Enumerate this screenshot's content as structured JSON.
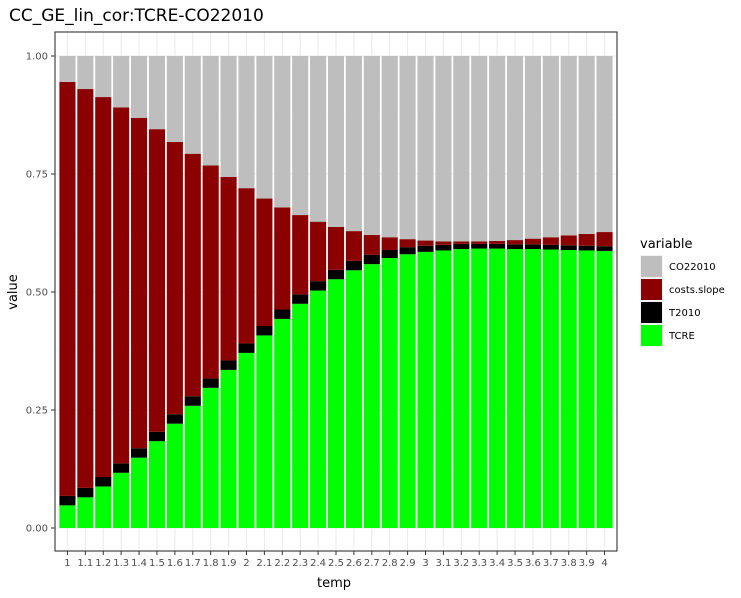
{
  "chart_data": {
    "type": "bar",
    "stacked": true,
    "title": "CC_GE_lin_cor:TCRE-CO22010",
    "xlabel": "temp",
    "ylabel": "value",
    "ylim": [
      0,
      1
    ],
    "yticks": [
      "0.00",
      "0.25",
      "0.50",
      "0.75",
      "1.00"
    ],
    "grid": true,
    "legend_placement": "right",
    "legend_title": "variable",
    "categories": [
      "1",
      "1.1",
      "1.2",
      "1.3",
      "1.4",
      "1.5",
      "1.6",
      "1.7",
      "1.8",
      "1.9",
      "2",
      "2.1",
      "2.2",
      "2.3",
      "2.4",
      "2.5",
      "2.6",
      "2.7",
      "2.8",
      "2.9",
      "3",
      "3.1",
      "3.2",
      "3.3",
      "3.4",
      "3.5",
      "3.6",
      "3.7",
      "3.8",
      "3.9",
      "4"
    ],
    "series": [
      {
        "name": "CO22010",
        "color": "#bebebe",
        "values": [
          0.055,
          0.07,
          0.087,
          0.109,
          0.131,
          0.155,
          0.182,
          0.207,
          0.232,
          0.256,
          0.28,
          0.302,
          0.321,
          0.337,
          0.351,
          0.362,
          0.371,
          0.379,
          0.384,
          0.388,
          0.391,
          0.393,
          0.393,
          0.393,
          0.392,
          0.39,
          0.387,
          0.384,
          0.38,
          0.377,
          0.373
        ]
      },
      {
        "name": "costs.slope",
        "color": "#8b0000",
        "values": [
          0.877,
          0.845,
          0.805,
          0.754,
          0.7,
          0.641,
          0.577,
          0.514,
          0.451,
          0.389,
          0.329,
          0.27,
          0.216,
          0.168,
          0.126,
          0.091,
          0.063,
          0.042,
          0.027,
          0.017,
          0.011,
          0.007,
          0.005,
          0.005,
          0.006,
          0.009,
          0.012,
          0.016,
          0.021,
          0.025,
          0.03
        ]
      },
      {
        "name": "T2010",
        "color": "#000000",
        "values": [
          0.02,
          0.02,
          0.02,
          0.02,
          0.02,
          0.02,
          0.02,
          0.02,
          0.02,
          0.02,
          0.02,
          0.02,
          0.02,
          0.02,
          0.02,
          0.02,
          0.02,
          0.02,
          0.017,
          0.015,
          0.013,
          0.012,
          0.011,
          0.01,
          0.01,
          0.01,
          0.01,
          0.01,
          0.01,
          0.01,
          0.01
        ]
      },
      {
        "name": "TCRE",
        "color": "#00ff00",
        "values": [
          0.048,
          0.065,
          0.088,
          0.117,
          0.149,
          0.184,
          0.221,
          0.259,
          0.297,
          0.335,
          0.371,
          0.408,
          0.443,
          0.475,
          0.503,
          0.527,
          0.546,
          0.559,
          0.572,
          0.58,
          0.585,
          0.588,
          0.591,
          0.592,
          0.592,
          0.591,
          0.591,
          0.59,
          0.589,
          0.588,
          0.587
        ]
      }
    ]
  }
}
